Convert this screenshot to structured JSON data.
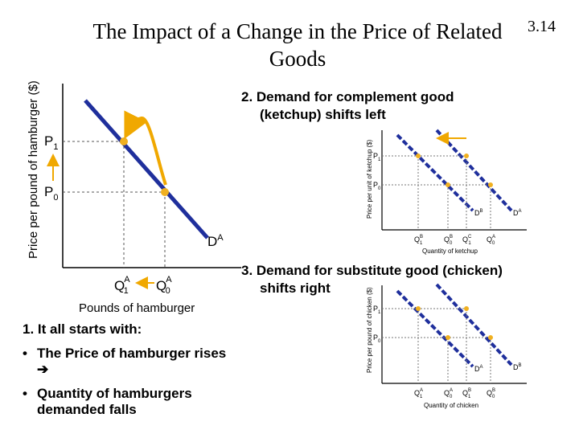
{
  "slide": {
    "title_line1": "The Impact of a Change in the Price of Related",
    "title_line2": "Goods",
    "number": "3.14"
  },
  "main_chart": {
    "ylabel": "Price per pound of hamburger ($)",
    "xlabel": "Pounds of hamburger",
    "p1_label": "P",
    "p1_sub": "1",
    "p0_label": "P",
    "p0_sub": "0",
    "q1_label": "Q",
    "q1_sub": "1",
    "q1_sup": "A",
    "q0_label": "Q",
    "q0_sub": "0",
    "q0_sup": "A",
    "curve_label": "D",
    "curve_sup": "A",
    "point_color": "#f0b020",
    "curve_color": "#1f2f9c",
    "arrow_color": "#f0a800"
  },
  "complement": {
    "heading_line1": "2.  Demand for complement good",
    "heading_line2": "(ketchup) shifts left",
    "ylabel": "Price per unit of ketchup ($)",
    "xlabel": "Quantity of ketchup",
    "p1": "P",
    "p1_sub": "1",
    "p0": "P",
    "p0_sub": "0",
    "curve_new": "D",
    "curve_new_sup": "B",
    "curve_old": "D",
    "curve_old_sup": "A",
    "ticks": [
      {
        "q": "Q",
        "sub": "1",
        "sup": "B"
      },
      {
        "q": "Q",
        "sub": "0",
        "sup": "B"
      },
      {
        "q": "Q",
        "sub": "1",
        "sup": "C"
      },
      {
        "q": "Q",
        "sub": "0",
        "sup": "A"
      }
    ]
  },
  "substitute": {
    "heading_line1": "3.  Demand for substitute good (chicken)",
    "heading_line2": "shifts right",
    "ylabel": "Price per pound of chicken ($)",
    "xlabel": "Quantity of chicken",
    "p1": "P",
    "p1_sub": "1",
    "p0": "P",
    "p0_sub": "0",
    "curve_old": "D",
    "curve_old_sup": "A",
    "curve_new": "D",
    "curve_new_sup": "B",
    "ticks": [
      {
        "q": "Q",
        "sub": "1",
        "sup": "A"
      },
      {
        "q": "Q",
        "sub": "0",
        "sup": "A"
      },
      {
        "q": "Q",
        "sub": "1",
        "sup": "B"
      },
      {
        "q": "Q",
        "sub": "0",
        "sup": "B"
      }
    ]
  },
  "section1": {
    "heading": "1.  It all starts with:",
    "bullet_char": "•",
    "bullet1": "The Price of hamburger rises",
    "arrow_glyph": "➔",
    "bullet2_line1": "Quantity of hamburgers",
    "bullet2_line2": "demanded falls"
  }
}
